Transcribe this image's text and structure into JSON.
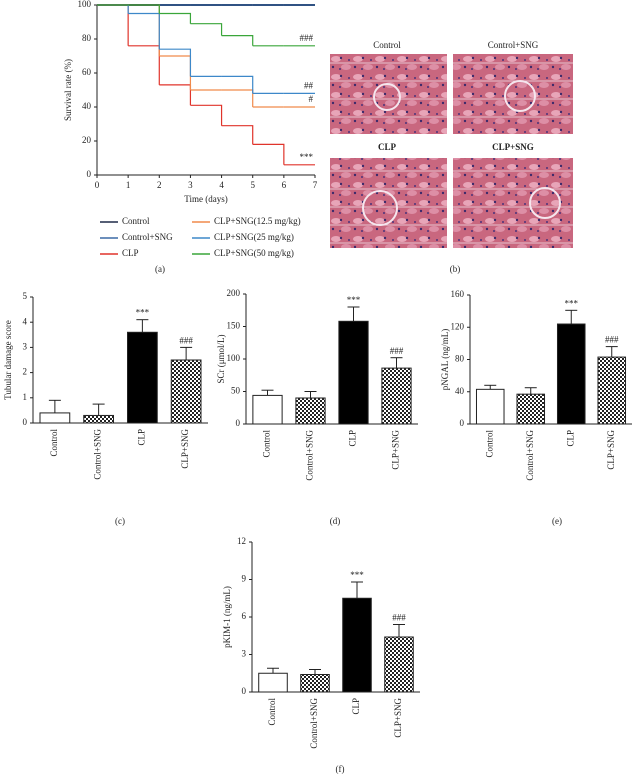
{
  "chart_data": [
    {
      "type": "line",
      "panel_label": "(a)",
      "xlabel": "Time (days)",
      "ylabel": "Survival rate (%)",
      "x": [
        0,
        1,
        2,
        3,
        4,
        5,
        6,
        7
      ],
      "xlim": [
        0,
        7
      ],
      "xticks": [
        0,
        1,
        2,
        3,
        4,
        5,
        6,
        7
      ],
      "ylim": [
        0,
        100
      ],
      "yticks": [
        0,
        20,
        40,
        60,
        80,
        100
      ],
      "series": [
        {
          "name": "Control",
          "color": "#1f2a48",
          "values": [
            100,
            100,
            100,
            100,
            100,
            100,
            100,
            100
          ]
        },
        {
          "name": "Control+SNG",
          "color": "#3b6aa6",
          "values": [
            100,
            100,
            100,
            100,
            100,
            100,
            100,
            100
          ]
        },
        {
          "name": "CLP",
          "color": "#e0342b",
          "values": [
            100,
            76,
            53,
            41,
            29,
            18,
            6,
            6
          ],
          "annotation": "***"
        },
        {
          "name": "CLP+SNG(12.5 mg/kg)",
          "color": "#f08a4b",
          "values": [
            100,
            100,
            70,
            50,
            50,
            40,
            40,
            40
          ],
          "annotation": "#"
        },
        {
          "name": "CLP+SNG(25 mg/kg)",
          "color": "#3d88c9",
          "values": [
            100,
            95,
            74,
            58,
            58,
            48,
            48,
            48
          ],
          "annotation": "##"
        },
        {
          "name": "CLP+SNG(50 mg/kg)",
          "color": "#3aa63a",
          "values": [
            100,
            100,
            95,
            89,
            82,
            76,
            76,
            76
          ],
          "annotation": "###"
        }
      ]
    },
    {
      "type": "bar",
      "panel_label": "(c)",
      "ylabel": "Tubular damage score",
      "categories": [
        "Control",
        "Control+SNG",
        "CLP",
        "CLP+SNG"
      ],
      "values": [
        0.4,
        0.3,
        3.6,
        2.5
      ],
      "errors": [
        0.5,
        0.45,
        0.5,
        0.5
      ],
      "annotations": [
        null,
        null,
        "***",
        "###"
      ],
      "fills": [
        "white",
        "checker",
        "black",
        "checker"
      ],
      "ylim": [
        0,
        5
      ],
      "yticks": [
        0,
        1,
        2,
        3,
        4,
        5
      ]
    },
    {
      "type": "bar",
      "panel_label": "(d)",
      "ylabel": "SCr (μmol/L)",
      "categories": [
        "Control",
        "Control+SNG",
        "CLP",
        "CLP+SNG"
      ],
      "values": [
        44,
        40,
        158,
        86
      ],
      "errors": [
        8,
        10,
        22,
        16
      ],
      "annotations": [
        null,
        null,
        "***",
        "###"
      ],
      "fills": [
        "white",
        "checker",
        "black",
        "checker"
      ],
      "ylim": [
        0,
        200
      ],
      "yticks": [
        0,
        50,
        100,
        150,
        200
      ]
    },
    {
      "type": "bar",
      "panel_label": "(e)",
      "ylabel": "pNGAL (ng/mL)",
      "categories": [
        "Control",
        "Control+SNG",
        "CLP",
        "CLP+SNG"
      ],
      "values": [
        43,
        37,
        124,
        83
      ],
      "errors": [
        5,
        8,
        17,
        13
      ],
      "annotations": [
        null,
        null,
        "***",
        "###"
      ],
      "fills": [
        "white",
        "checker",
        "black",
        "checker"
      ],
      "ylim": [
        0,
        160
      ],
      "yticks": [
        0,
        40,
        80,
        120,
        160
      ]
    },
    {
      "type": "bar",
      "panel_label": "(f)",
      "ylabel": "pKIM-1 (ng/mL)",
      "categories": [
        "Control",
        "Control+SNG",
        "CLP",
        "CLP+SNG"
      ],
      "values": [
        1.5,
        1.4,
        7.5,
        4.4
      ],
      "errors": [
        0.4,
        0.4,
        1.3,
        1.0
      ],
      "annotations": [
        null,
        null,
        "***",
        "###"
      ],
      "fills": [
        "white",
        "checker",
        "black",
        "checker"
      ],
      "ylim": [
        0,
        12
      ],
      "yticks": [
        0,
        3,
        6,
        9,
        12
      ]
    }
  ],
  "image_panel": {
    "panel_label": "(b)",
    "labels": [
      "Control",
      "Control+SNG",
      "CLP",
      "CLP+SNG"
    ]
  }
}
